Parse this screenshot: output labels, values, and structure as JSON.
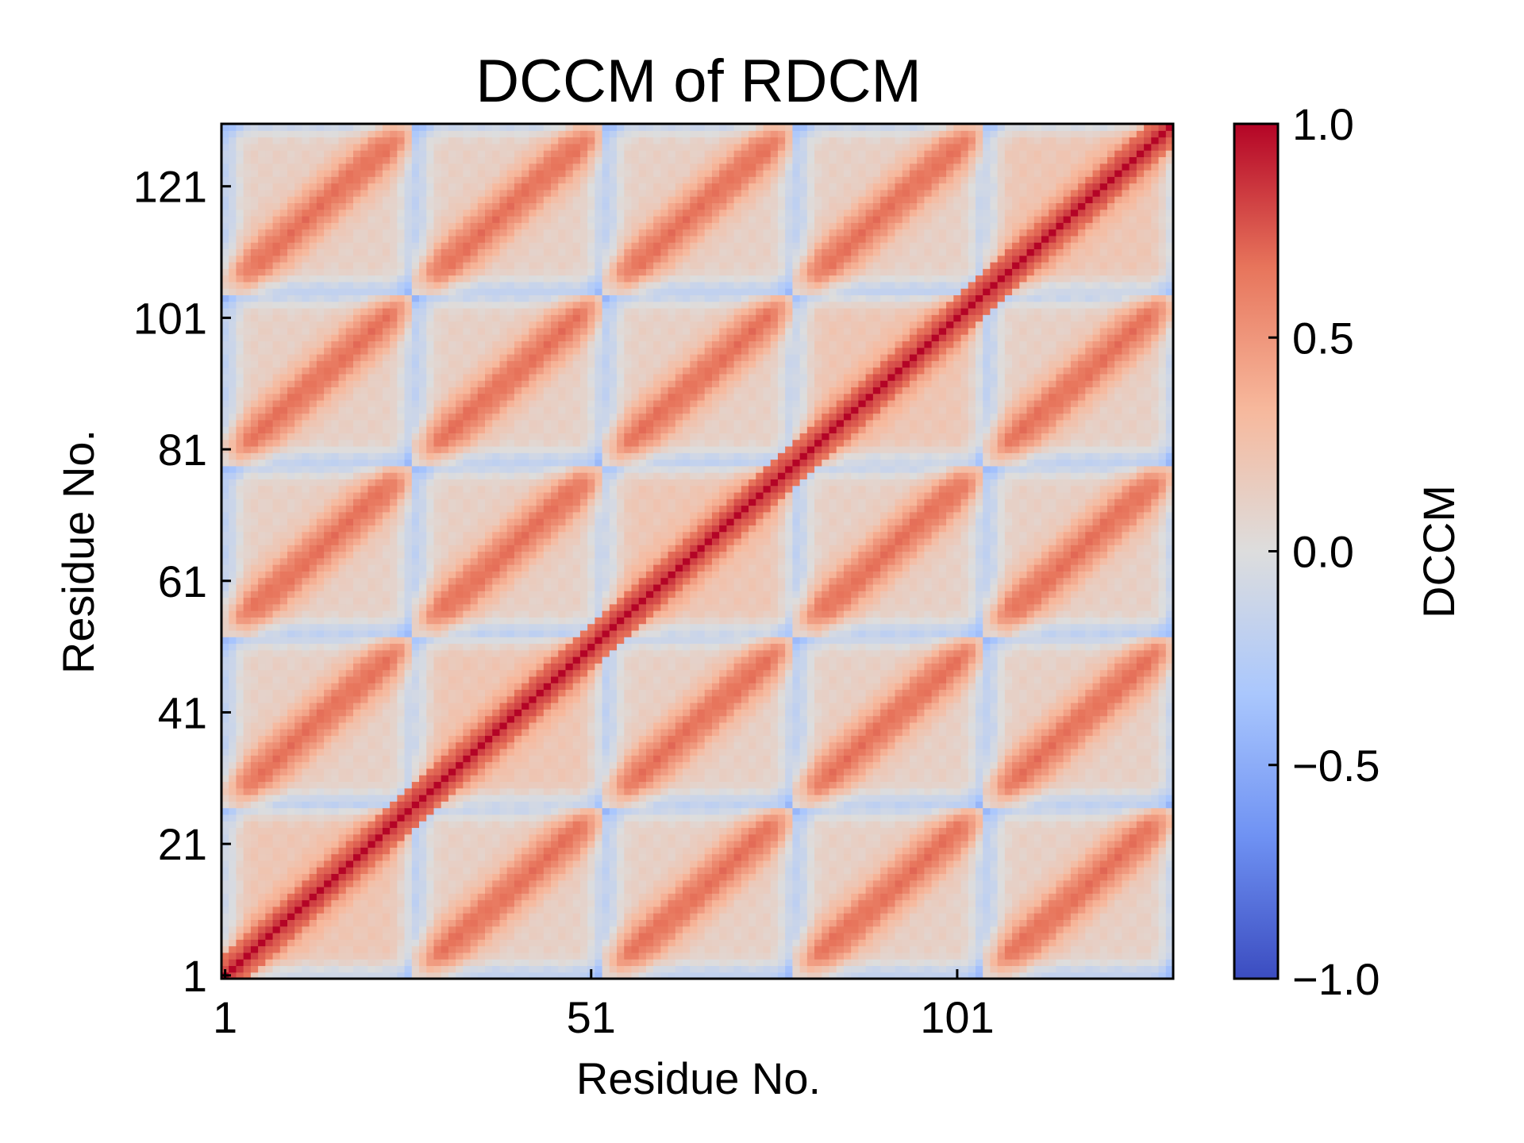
{
  "chart_data": {
    "type": "heatmap",
    "title": "DCCM of RDCM",
    "xlabel": "Residue No.",
    "ylabel": "Residue No.",
    "n_residues": 130,
    "x_ticks": [
      1,
      51,
      101
    ],
    "y_ticks": [
      1,
      21,
      41,
      61,
      81,
      101,
      121
    ],
    "colorbar": {
      "label": "DCCM",
      "range": [
        -1.0,
        1.0
      ],
      "ticks": [
        1.0,
        0.5,
        0.0,
        -0.5,
        -1.0
      ],
      "tick_labels": [
        "1.0",
        "0.5",
        "0.0",
        "−0.5",
        "−1.0"
      ],
      "colormap": "coolwarm",
      "stops": [
        "#3b4cc0",
        "#6f92f3",
        "#aac7fd",
        "#dddddd",
        "#f7b89c",
        "#e7745b",
        "#b40426"
      ]
    },
    "pattern": {
      "description_values": {
        "diagonal": 1.0,
        "domain_boundaries": [
          27,
          53,
          79,
          105
        ],
        "in_block_peak": 0.72,
        "boundary_min": -0.2,
        "inter_block_peak": 0.68
      }
    }
  }
}
